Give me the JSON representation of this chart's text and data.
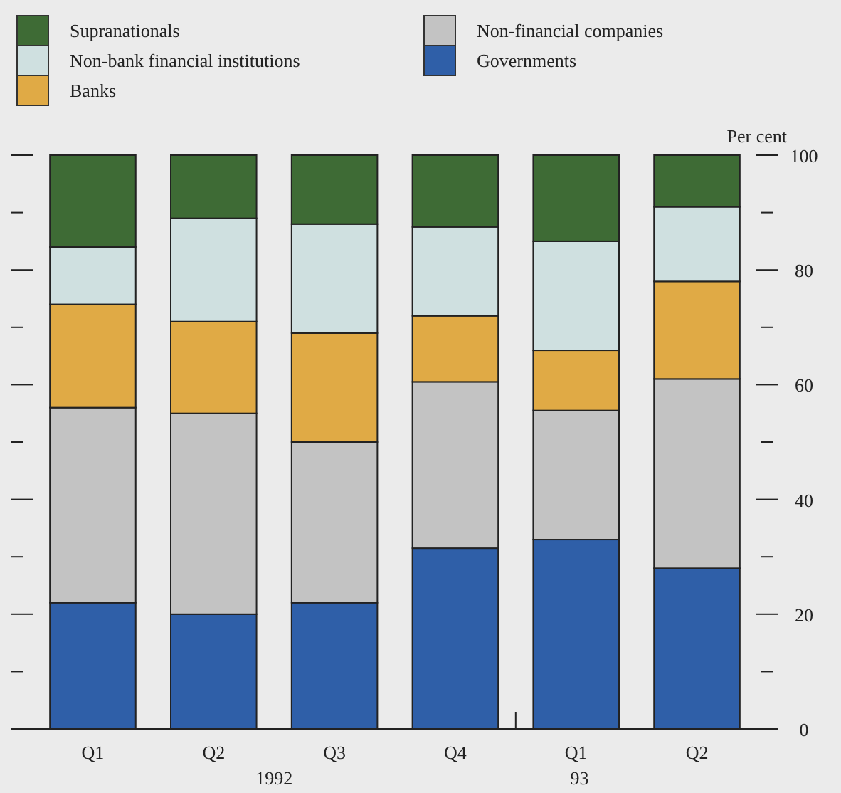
{
  "chart_data": {
    "type": "bar",
    "stacked": true,
    "ylabel": "Per cent",
    "categories": [
      "Q1",
      "Q2",
      "Q3",
      "Q4",
      "Q1",
      "Q2"
    ],
    "series": [
      {
        "name": "Governments",
        "color": "#2f5fa8",
        "values": [
          22,
          20,
          22,
          31.5,
          33,
          28
        ]
      },
      {
        "name": "Non-financial companies",
        "color": "#c3c3c3",
        "values": [
          34,
          35,
          28,
          29,
          22.5,
          33
        ]
      },
      {
        "name": "Banks",
        "color": "#e0aa45",
        "values": [
          18,
          16,
          19,
          11.5,
          10.5,
          17
        ]
      },
      {
        "name": "Non-bank financial institutions",
        "color": "#cfe0e0",
        "values": [
          10,
          18,
          19,
          15.5,
          19,
          13
        ]
      },
      {
        "name": "Supranationals",
        "color": "#3e6b35",
        "values": [
          16,
          11,
          12,
          12.5,
          15,
          9
        ]
      }
    ],
    "ylim": [
      0,
      100
    ],
    "yticks": [
      0,
      {
        "value": 10,
        "label": null
      },
      20,
      {
        "value": 30,
        "label": null
      },
      40,
      {
        "value": 50,
        "label": null
      },
      60,
      {
        "value": 70,
        "label": null
      },
      80,
      {
        "value": 90,
        "label": null
      },
      100
    ],
    "legend": "top left",
    "annotations": [
      "1992",
      "93"
    ]
  }
}
